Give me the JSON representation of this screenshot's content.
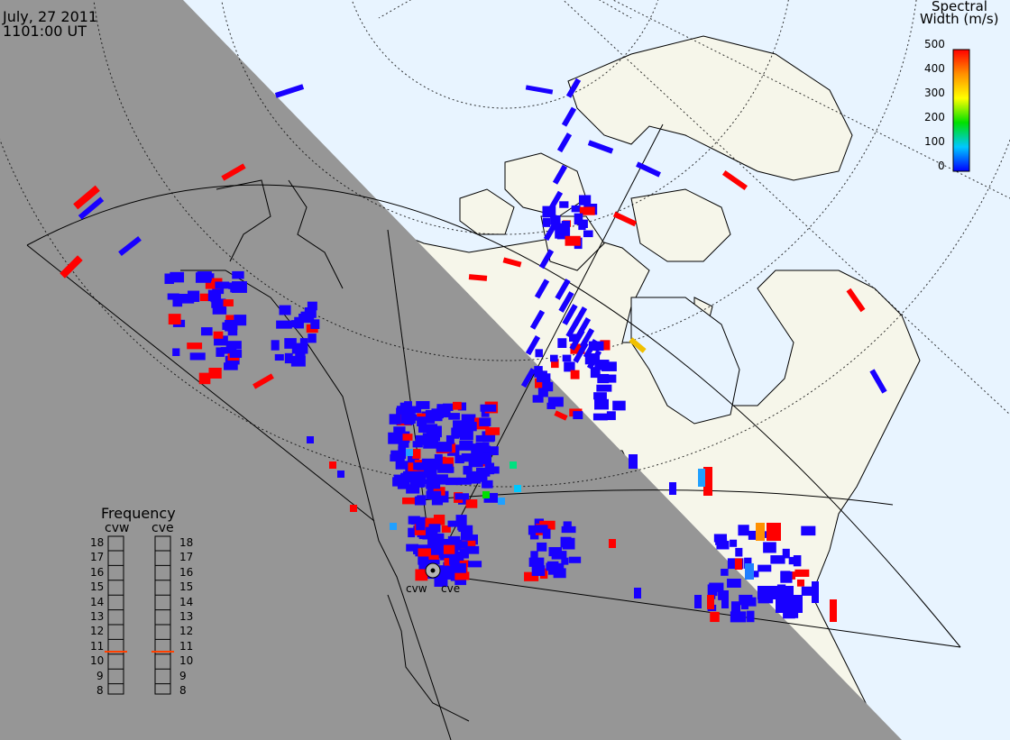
{
  "header": {
    "date": "July, 27 2011",
    "time": "1101:00 UT"
  },
  "colorbar": {
    "title_line1": "Spectral",
    "title_line2": "Width (m/s)",
    "ticks": [
      "500",
      "400",
      "300",
      "200",
      "100",
      "0"
    ],
    "range": [
      0,
      500
    ],
    "colors": [
      "#0000ff",
      "#00c8ff",
      "#00e000",
      "#ffff00",
      "#ff9000",
      "#ff0000"
    ]
  },
  "frequency_panel": {
    "title": "Frequency",
    "radars": [
      {
        "label": "cvw",
        "current_mhz": 10.9
      },
      {
        "label": "cve",
        "current_mhz": 10.9
      }
    ],
    "ticks": [
      "18",
      "17",
      "16",
      "15",
      "14",
      "13",
      "12",
      "11",
      "10",
      "9",
      "8"
    ],
    "indicator_color": "#ff4000"
  },
  "radar_sites": {
    "labels": [
      "cvw",
      "cve"
    ]
  },
  "map_colors": {
    "night": "#969696",
    "ocean": "#e8f4ff",
    "land": "#f6f6ea",
    "echo_low": "#1800ff",
    "echo_high": "#ff0000"
  }
}
